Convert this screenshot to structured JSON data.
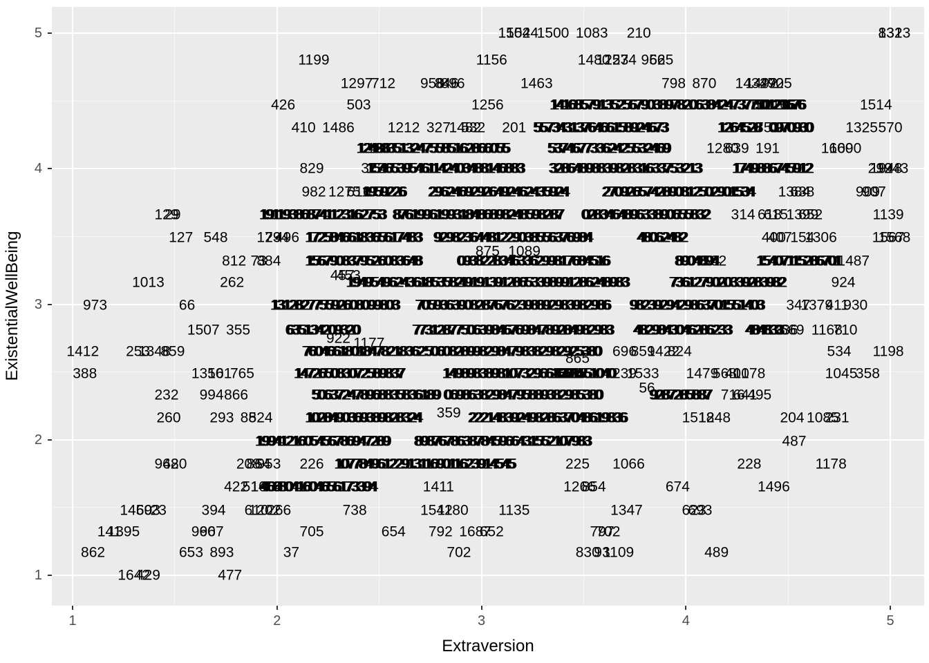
{
  "colors": {
    "panel_background": "#EBEBEB",
    "gridline": "#FFFFFF",
    "tick_text": "#4D4D4D",
    "tick_mark": "#333333",
    "label_text": "#000000",
    "outer_background": "#FFFFFF"
  },
  "chart_data": {
    "type": "scatter",
    "geom": "text-labels",
    "title": "",
    "xlabel": "Extraversion",
    "ylabel": "ExistentialWellBeing",
    "xlim": [
      0.9,
      5.17
    ],
    "ylim": [
      0.78,
      5.19
    ],
    "x_ticks": [
      1,
      2,
      3,
      4,
      5
    ],
    "y_ticks": [
      1,
      2,
      3,
      4,
      5
    ],
    "grid": {
      "major": true,
      "minor": true
    },
    "points": [
      [
        "1504",
        3.16,
        5.0
      ],
      [
        "1524",
        3.2,
        5.0
      ],
      [
        "1500",
        3.35,
        5.0
      ],
      [
        "1083",
        3.54,
        5.0
      ],
      [
        "210",
        3.77,
        5.0
      ],
      [
        "832",
        5.0,
        5.0
      ],
      [
        "1313",
        5.02,
        5.0
      ],
      [
        "1199",
        2.18,
        4.8
      ],
      [
        "1156",
        3.05,
        4.8
      ],
      [
        "1480",
        3.55,
        4.8
      ],
      [
        "1257",
        3.64,
        4.8
      ],
      [
        "1234",
        3.68,
        4.8
      ],
      [
        "956",
        3.84,
        4.8
      ],
      [
        "625",
        3.88,
        4.8
      ],
      [
        "1297",
        2.39,
        4.63
      ],
      [
        "712",
        2.52,
        4.63
      ],
      [
        "958",
        2.76,
        4.63
      ],
      [
        "846",
        2.83,
        4.63
      ],
      [
        "896",
        2.86,
        4.63
      ],
      [
        "1463",
        3.27,
        4.63
      ],
      [
        "798",
        3.94,
        4.63
      ],
      [
        "870",
        4.09,
        4.63
      ],
      [
        "1434",
        4.32,
        4.63
      ],
      [
        "1492",
        4.37,
        4.63
      ],
      [
        "270",
        4.42,
        4.63
      ],
      [
        "925",
        4.46,
        4.63
      ],
      [
        "426",
        2.03,
        4.47
      ],
      [
        "503",
        2.4,
        4.47
      ],
      [
        "1256",
        3.03,
        4.47
      ],
      [
        "750",
        4.34,
        4.47
      ],
      [
        "1216",
        4.42,
        4.47
      ],
      [
        "1276",
        4.46,
        4.47
      ],
      [
        "1514",
        4.93,
        4.47
      ],
      [
        "410",
        2.13,
        4.3
      ],
      [
        "1486",
        2.3,
        4.3
      ],
      [
        "1212",
        2.62,
        4.3
      ],
      [
        "327",
        2.79,
        4.3
      ],
      [
        "1482",
        2.92,
        4.3
      ],
      [
        "532",
        2.96,
        4.3
      ],
      [
        "201",
        3.16,
        4.3
      ],
      [
        "753",
        4.4,
        4.3
      ],
      [
        "1325",
        4.86,
        4.3
      ],
      [
        "570",
        5.0,
        4.3
      ],
      [
        "126",
        2.5,
        4.15
      ],
      [
        "1280",
        4.18,
        4.15
      ],
      [
        "639",
        4.25,
        4.15
      ],
      [
        "191",
        4.4,
        4.15
      ],
      [
        "1600",
        4.74,
        4.15
      ],
      [
        "1690",
        4.78,
        4.15
      ],
      [
        "829",
        2.17,
        4.0
      ],
      [
        "372",
        2.47,
        4.0
      ],
      [
        "292",
        4.95,
        4.0
      ],
      [
        "1948",
        4.98,
        4.0
      ],
      [
        "1943",
        5.01,
        4.0
      ],
      [
        "982",
        2.18,
        3.83
      ],
      [
        "1275",
        2.33,
        3.83
      ],
      [
        "616",
        2.4,
        3.83
      ],
      [
        "1384",
        4.53,
        3.83
      ],
      [
        "638",
        4.57,
        3.83
      ],
      [
        "909",
        4.89,
        3.83
      ],
      [
        "907",
        4.92,
        3.83
      ],
      [
        "129",
        1.46,
        3.66
      ],
      [
        "29",
        1.49,
        3.66
      ],
      [
        "314",
        4.28,
        3.66
      ],
      [
        "618",
        4.41,
        3.66
      ],
      [
        "615",
        4.44,
        3.66
      ],
      [
        "1399",
        4.57,
        3.66
      ],
      [
        "652",
        4.61,
        3.66
      ],
      [
        "1139",
        4.99,
        3.66
      ],
      [
        "127",
        1.53,
        3.49
      ],
      [
        "548",
        1.7,
        3.49
      ],
      [
        "173",
        1.96,
        3.49
      ],
      [
        "294",
        2.0,
        3.49
      ],
      [
        "496",
        2.05,
        3.49
      ],
      [
        "400",
        4.43,
        3.49
      ],
      [
        "407",
        4.46,
        3.49
      ],
      [
        "154",
        4.57,
        3.49
      ],
      [
        "1306",
        4.66,
        3.49
      ],
      [
        "1567",
        4.99,
        3.49
      ],
      [
        "1568",
        5.02,
        3.49
      ],
      [
        "875",
        3.03,
        3.39
      ],
      [
        "1089",
        3.21,
        3.39
      ],
      [
        "812",
        1.79,
        3.32
      ],
      [
        "73",
        1.91,
        3.32
      ],
      [
        "884",
        1.96,
        3.32
      ],
      [
        "502",
        4.14,
        3.32
      ],
      [
        "1487",
        4.82,
        3.32
      ],
      [
        "457",
        2.32,
        3.21
      ],
      [
        "453",
        2.35,
        3.21
      ],
      [
        "1013",
        1.37,
        3.16
      ],
      [
        "262",
        1.78,
        3.16
      ],
      [
        "924",
        4.77,
        3.16
      ],
      [
        "973",
        1.11,
        2.99
      ],
      [
        "66",
        1.56,
        2.99
      ],
      [
        "347",
        4.55,
        2.99
      ],
      [
        "1379",
        4.64,
        2.99
      ],
      [
        "411",
        4.74,
        2.99
      ],
      [
        "930",
        4.83,
        2.99
      ],
      [
        "1507",
        1.64,
        2.81
      ],
      [
        "355",
        1.81,
        2.81
      ],
      [
        "1936",
        4.47,
        2.81
      ],
      [
        "669",
        4.52,
        2.81
      ],
      [
        "1168",
        4.69,
        2.81
      ],
      [
        "710",
        4.78,
        2.81
      ],
      [
        "922",
        2.3,
        2.75
      ],
      [
        "1177",
        2.45,
        2.71
      ],
      [
        "1412",
        1.05,
        2.65
      ],
      [
        "253",
        1.32,
        2.65
      ],
      [
        "1348",
        1.4,
        2.65
      ],
      [
        "859",
        1.49,
        2.65
      ],
      [
        "696",
        3.7,
        2.65
      ],
      [
        "859",
        3.79,
        2.65
      ],
      [
        "1422",
        3.89,
        2.65
      ],
      [
        "824",
        3.97,
        2.65
      ],
      [
        "534",
        4.75,
        2.65
      ],
      [
        "1198",
        4.99,
        2.65
      ],
      [
        "865",
        3.47,
        2.6
      ],
      [
        "388",
        1.06,
        2.49
      ],
      [
        "1350",
        1.66,
        2.49
      ],
      [
        "161",
        1.72,
        2.49
      ],
      [
        "765",
        1.83,
        2.49
      ],
      [
        "239",
        3.7,
        2.49
      ],
      [
        "1533",
        3.79,
        2.49
      ],
      [
        "1479",
        4.08,
        2.49
      ],
      [
        "568",
        4.19,
        2.49
      ],
      [
        "401",
        4.25,
        2.49
      ],
      [
        "1078",
        4.31,
        2.49
      ],
      [
        "1045",
        4.76,
        2.49
      ],
      [
        "358",
        4.89,
        2.49
      ],
      [
        "56",
        3.81,
        2.38
      ],
      [
        "232",
        1.46,
        2.33
      ],
      [
        "994",
        1.68,
        2.33
      ],
      [
        "866",
        1.8,
        2.33
      ],
      [
        "716",
        4.23,
        2.33
      ],
      [
        "641",
        4.29,
        2.33
      ],
      [
        "495",
        4.36,
        2.33
      ],
      [
        "359",
        2.84,
        2.2
      ],
      [
        "260",
        1.47,
        2.16
      ],
      [
        "293",
        1.73,
        2.16
      ],
      [
        "88",
        1.86,
        2.16
      ],
      [
        "524",
        1.92,
        2.16
      ],
      [
        "1518",
        4.06,
        2.16
      ],
      [
        "1248",
        4.14,
        2.16
      ],
      [
        "204",
        4.52,
        2.16
      ],
      [
        "1085",
        4.67,
        2.16
      ],
      [
        "231",
        4.74,
        2.16
      ],
      [
        "487",
        4.53,
        1.99
      ],
      [
        "962",
        1.46,
        1.82
      ],
      [
        "480",
        1.5,
        1.82
      ],
      [
        "208",
        1.86,
        1.82
      ],
      [
        "864",
        1.91,
        1.82
      ],
      [
        "953",
        1.96,
        1.82
      ],
      [
        "226",
        2.17,
        1.82
      ],
      [
        "225",
        3.47,
        1.82
      ],
      [
        "1066",
        3.72,
        1.82
      ],
      [
        "228",
        4.31,
        1.82
      ],
      [
        "1178",
        4.71,
        1.82
      ],
      [
        "422",
        1.8,
        1.65
      ],
      [
        "514",
        1.89,
        1.65
      ],
      [
        "1054",
        1.95,
        1.65
      ],
      [
        "1411",
        2.79,
        1.65
      ],
      [
        "1266",
        3.48,
        1.65
      ],
      [
        "854",
        3.55,
        1.65
      ],
      [
        "674",
        3.96,
        1.65
      ],
      [
        "1496",
        4.43,
        1.65
      ],
      [
        "1459",
        1.31,
        1.48
      ],
      [
        "603",
        1.37,
        1.48
      ],
      [
        "23",
        1.42,
        1.48
      ],
      [
        "394",
        1.69,
        1.48
      ],
      [
        "610",
        1.9,
        1.48
      ],
      [
        "1202",
        1.94,
        1.48
      ],
      [
        "266",
        2.01,
        1.48
      ],
      [
        "738",
        2.38,
        1.48
      ],
      [
        "1542",
        2.78,
        1.48
      ],
      [
        "1180",
        2.86,
        1.48
      ],
      [
        "1135",
        3.16,
        1.48
      ],
      [
        "1347",
        3.71,
        1.48
      ],
      [
        "623",
        4.04,
        1.48
      ],
      [
        "693",
        4.07,
        1.48
      ],
      [
        "141",
        1.18,
        1.32
      ],
      [
        "1395",
        1.25,
        1.32
      ],
      [
        "960",
        1.64,
        1.32
      ],
      [
        "967",
        1.68,
        1.32
      ],
      [
        "705",
        2.17,
        1.32
      ],
      [
        "654",
        2.57,
        1.32
      ],
      [
        "792",
        2.8,
        1.32
      ],
      [
        "1687",
        2.97,
        1.32
      ],
      [
        "652",
        3.05,
        1.32
      ],
      [
        "797",
        3.59,
        1.32
      ],
      [
        "702",
        3.62,
        1.32
      ],
      [
        "862",
        1.1,
        1.17
      ],
      [
        "653",
        1.58,
        1.17
      ],
      [
        "893",
        1.73,
        1.17
      ],
      [
        "37",
        2.07,
        1.17
      ],
      [
        "702",
        2.89,
        1.17
      ],
      [
        "830",
        3.52,
        1.17
      ],
      [
        "93",
        3.59,
        1.17
      ],
      [
        "1109",
        3.67,
        1.17
      ],
      [
        "489",
        4.15,
        1.17
      ],
      [
        "1642",
        1.3,
        1.0
      ],
      [
        "429",
        1.37,
        1.0
      ],
      [
        "477",
        1.77,
        1.0
      ]
    ],
    "overplotted_clusters": [
      [
        "14168579135256790389782063",
        3.72,
        4.47
      ],
      [
        "8424737750121676",
        4.34,
        4.47
      ],
      [
        "5573431376466158924673",
        3.58,
        4.3
      ],
      [
        "1264528",
        4.26,
        4.3
      ],
      [
        "0970930",
        4.51,
        4.3
      ],
      [
        "1248835132475585162866055",
        2.76,
        4.15
      ],
      [
        "53746773362425532469",
        3.62,
        4.15
      ],
      [
        "15465395461142403488146883",
        2.82,
        4.0
      ],
      [
        "3286489883982831633753213",
        3.7,
        4.0
      ],
      [
        "1749886745912",
        4.42,
        4.0
      ],
      [
        "1959226",
        2.52,
        3.83
      ],
      [
        "29624692926492462435924",
        3.08,
        3.83
      ],
      [
        "2709265742890812502901534",
        3.96,
        3.83
      ],
      [
        "191193868741123162753",
        2.22,
        3.66
      ],
      [
        "8761996199318486898248598287",
        2.98,
        3.66
      ],
      [
        "028346489633890655832",
        3.8,
        3.66
      ],
      [
        "1725846618365617483",
        2.42,
        3.49
      ],
      [
        "92982364481229038556376984",
        3.15,
        3.49
      ],
      [
        "48062482",
        3.88,
        3.49
      ],
      [
        "1567908379526083648",
        2.42,
        3.32
      ],
      [
        "0938228346336299817684516",
        3.25,
        3.32
      ],
      [
        "8904894",
        4.05,
        3.32
      ],
      [
        "15407115286701",
        4.55,
        3.32
      ],
      [
        "1949549624361853582",
        2.62,
        3.16
      ],
      [
        "4919139128653398991286248983",
        3.3,
        3.16
      ],
      [
        "7361279020339283982",
        4.2,
        3.16
      ],
      [
        "131282775592608099803",
        2.28,
        2.99
      ],
      [
        "70593639082876762398892983982986",
        3.15,
        2.99
      ],
      [
        "9823929429863701551403",
        4.05,
        2.99
      ],
      [
        "635134209320",
        2.22,
        2.81
      ],
      [
        "773128775063984676984789284982983",
        3.15,
        2.81
      ],
      [
        "4829843046286233",
        3.98,
        2.81
      ],
      [
        "484833",
        4.38,
        2.81
      ],
      [
        "76046618018478218362",
        2.42,
        2.65
      ],
      [
        "50608289982984798382982925380",
        3.15,
        2.65
      ],
      [
        "147265083072589837",
        2.35,
        2.49
      ],
      [
        "14989838981073296616684",
        3.15,
        2.49
      ],
      [
        "4201551040",
        3.5,
        2.49
      ],
      [
        "506372478968835836189",
        2.48,
        2.33
      ],
      [
        "06986382984795889382985380",
        3.2,
        2.33
      ],
      [
        "9287285887",
        3.97,
        2.33
      ],
      [
        "1028490369389828324",
        2.42,
        2.16
      ],
      [
        "22214839249828637048619836",
        3.32,
        2.16
      ],
      [
        "1994121605456786947289",
        2.22,
        1.99
      ],
      [
        "89876786387845966431552107983",
        3.1,
        1.99
      ],
      [
        "107784961229131169011623914545",
        2.72,
        1.82
      ],
      [
        "4668041604656173394",
        2.2,
        1.65
      ]
    ]
  }
}
